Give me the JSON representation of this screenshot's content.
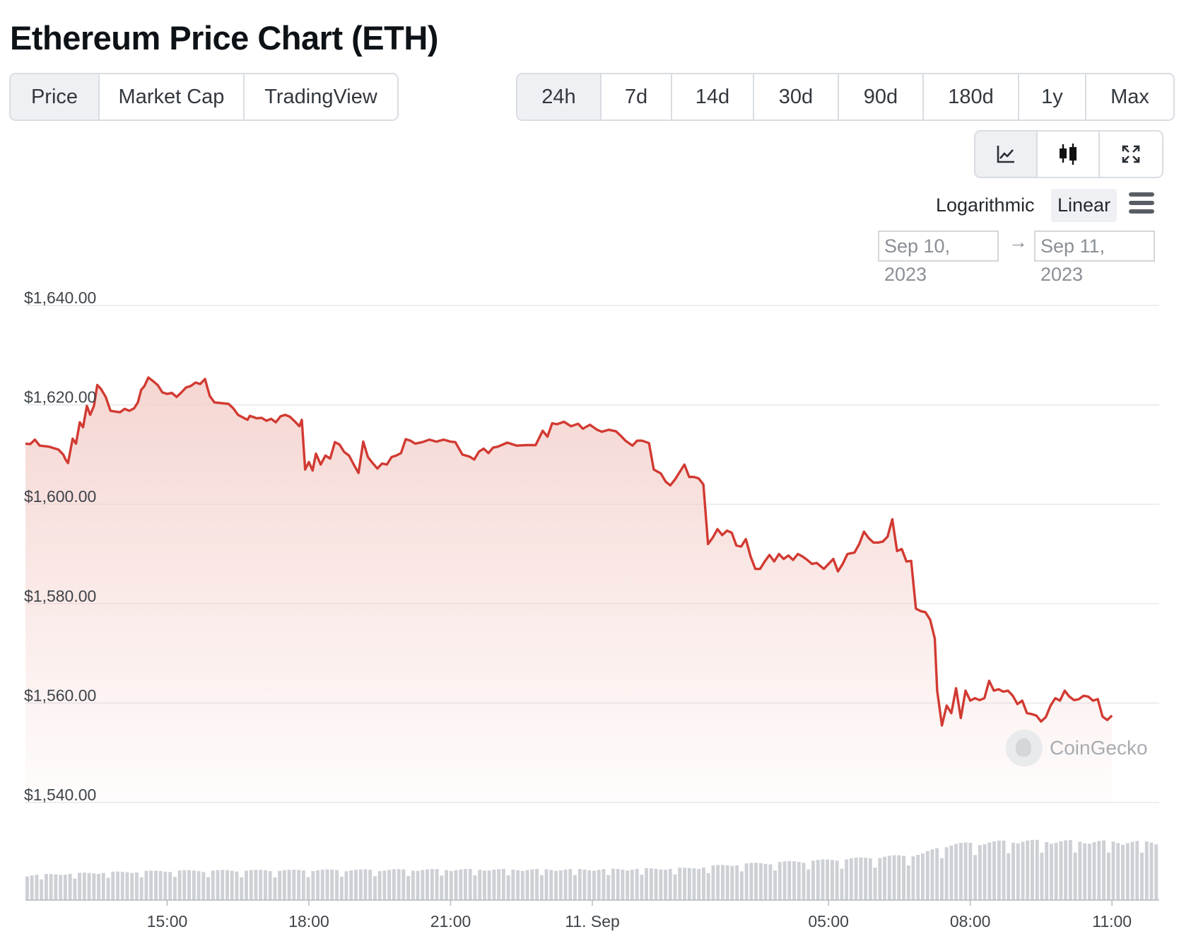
{
  "title": "Ethereum Price Chart (ETH)",
  "tabs": [
    {
      "label": "Price",
      "active": true
    },
    {
      "label": "Market Cap",
      "active": false
    },
    {
      "label": "TradingView",
      "active": false
    }
  ],
  "ranges": [
    {
      "label": "24h",
      "active": true
    },
    {
      "label": "7d",
      "active": false
    },
    {
      "label": "14d",
      "active": false
    },
    {
      "label": "30d",
      "active": false
    },
    {
      "label": "90d",
      "active": false
    },
    {
      "label": "180d",
      "active": false
    },
    {
      "label": "1y",
      "active": false
    },
    {
      "label": "Max",
      "active": false
    }
  ],
  "tools": [
    {
      "icon": "line-chart-icon",
      "active": true
    },
    {
      "icon": "candlestick-icon",
      "active": false
    },
    {
      "icon": "fullscreen-icon",
      "active": false
    }
  ],
  "scale": {
    "log_label": "Logarithmic",
    "linear_label": "Linear",
    "active": "linear",
    "menu_icon": "hamburger-menu-icon"
  },
  "date_range": {
    "from": "Sep 10, 2023",
    "arrow": "→",
    "to": "Sep 11, 2023"
  },
  "watermark": {
    "label": "CoinGecko",
    "icon": "coingecko-logo-icon"
  },
  "colors": {
    "line": "#d13a32",
    "fill": "#f3cfca",
    "volume": "#cdd0d5",
    "grid": "#e6e8eb",
    "active_bg": "#eef0f3"
  },
  "chart_data": {
    "type": "area",
    "title": "",
    "ylabel": "",
    "xlabel": "",
    "ylim": [
      1540,
      1640
    ],
    "ytick_labels": [
      "$1,640.00",
      "$1,620.00",
      "$1,600.00",
      "$1,580.00",
      "$1,560.00",
      "$1,540.00"
    ],
    "ytick_values": [
      1640,
      1620,
      1600,
      1580,
      1560,
      1540
    ],
    "xtick_labels": [
      "15:00",
      "18:00",
      "21:00",
      "11. Sep",
      "05:00",
      "08:00",
      "11:00"
    ],
    "xtick_hours": [
      15,
      18,
      21,
      24,
      29,
      32,
      35
    ],
    "x_range_hours": [
      12,
      36
    ],
    "grid": true,
    "series": [
      {
        "unit": "USD",
        "points": [
          [
            12.0,
            1612.2
          ],
          [
            12.1,
            1612.1
          ],
          [
            12.2,
            1613.0
          ],
          [
            12.3,
            1611.8
          ],
          [
            12.5,
            1611.6
          ],
          [
            12.7,
            1611.0
          ],
          [
            12.8,
            1610.0
          ],
          [
            12.85,
            1609.0
          ],
          [
            12.9,
            1608.3
          ],
          [
            13.0,
            1613.2
          ],
          [
            13.07,
            1612.2
          ],
          [
            13.15,
            1616.5
          ],
          [
            13.22,
            1615.5
          ],
          [
            13.3,
            1619.8
          ],
          [
            13.37,
            1618.0
          ],
          [
            13.45,
            1619.8
          ],
          [
            13.52,
            1624.0
          ],
          [
            13.6,
            1623.2
          ],
          [
            13.7,
            1621.6
          ],
          [
            13.8,
            1618.8
          ],
          [
            14.0,
            1618.5
          ],
          [
            14.1,
            1619.2
          ],
          [
            14.2,
            1618.8
          ],
          [
            14.3,
            1619.3
          ],
          [
            14.38,
            1620.5
          ],
          [
            14.45,
            1623.0
          ],
          [
            14.52,
            1623.8
          ],
          [
            14.6,
            1625.5
          ],
          [
            14.7,
            1624.8
          ],
          [
            14.8,
            1624.0
          ],
          [
            14.9,
            1622.5
          ],
          [
            15.0,
            1622.2
          ],
          [
            15.1,
            1622.4
          ],
          [
            15.2,
            1621.6
          ],
          [
            15.3,
            1622.5
          ],
          [
            15.4,
            1623.5
          ],
          [
            15.5,
            1623.8
          ],
          [
            15.6,
            1624.5
          ],
          [
            15.7,
            1624.2
          ],
          [
            15.8,
            1625.2
          ],
          [
            15.9,
            1621.8
          ],
          [
            16.0,
            1620.5
          ],
          [
            16.2,
            1620.3
          ],
          [
            16.3,
            1620.2
          ],
          [
            16.4,
            1619.3
          ],
          [
            16.5,
            1618.0
          ],
          [
            16.6,
            1617.5
          ],
          [
            16.7,
            1617.0
          ],
          [
            16.75,
            1617.8
          ],
          [
            16.9,
            1617.3
          ],
          [
            17.0,
            1617.4
          ],
          [
            17.1,
            1616.8
          ],
          [
            17.2,
            1617.2
          ],
          [
            17.3,
            1616.5
          ],
          [
            17.4,
            1617.7
          ],
          [
            17.5,
            1618.0
          ],
          [
            17.6,
            1617.6
          ],
          [
            17.7,
            1616.7
          ],
          [
            17.8,
            1615.7
          ],
          [
            17.85,
            1617.0
          ],
          [
            17.92,
            1607.0
          ],
          [
            18.0,
            1608.5
          ],
          [
            18.08,
            1606.8
          ],
          [
            18.15,
            1610.2
          ],
          [
            18.25,
            1608.0
          ],
          [
            18.35,
            1609.8
          ],
          [
            18.45,
            1609.2
          ],
          [
            18.55,
            1612.5
          ],
          [
            18.65,
            1612.0
          ],
          [
            18.75,
            1610.5
          ],
          [
            18.85,
            1609.8
          ],
          [
            18.95,
            1608.0
          ],
          [
            19.05,
            1606.3
          ],
          [
            19.15,
            1612.6
          ],
          [
            19.25,
            1609.5
          ],
          [
            19.35,
            1608.3
          ],
          [
            19.45,
            1607.2
          ],
          [
            19.55,
            1608.2
          ],
          [
            19.65,
            1608.0
          ],
          [
            19.75,
            1609.5
          ],
          [
            19.85,
            1609.8
          ],
          [
            19.95,
            1610.3
          ],
          [
            20.05,
            1613.1
          ],
          [
            20.15,
            1612.8
          ],
          [
            20.25,
            1612.2
          ],
          [
            20.4,
            1612.5
          ],
          [
            20.55,
            1613.0
          ],
          [
            20.7,
            1612.6
          ],
          [
            20.85,
            1613.0
          ],
          [
            21.0,
            1612.6
          ],
          [
            21.1,
            1612.5
          ],
          [
            21.25,
            1610.0
          ],
          [
            21.4,
            1609.6
          ],
          [
            21.5,
            1609.0
          ],
          [
            21.6,
            1610.6
          ],
          [
            21.7,
            1611.2
          ],
          [
            21.8,
            1610.3
          ],
          [
            21.9,
            1611.4
          ],
          [
            22.0,
            1611.6
          ],
          [
            22.2,
            1612.4
          ],
          [
            22.4,
            1611.8
          ],
          [
            22.6,
            1611.9
          ],
          [
            22.8,
            1611.9
          ],
          [
            22.95,
            1614.8
          ],
          [
            23.05,
            1613.6
          ],
          [
            23.15,
            1616.3
          ],
          [
            23.25,
            1616.1
          ],
          [
            23.4,
            1616.6
          ],
          [
            23.55,
            1615.7
          ],
          [
            23.7,
            1616.2
          ],
          [
            23.8,
            1615.2
          ],
          [
            23.95,
            1616.0
          ],
          [
            24.1,
            1615.0
          ],
          [
            24.2,
            1614.6
          ],
          [
            24.35,
            1615.0
          ],
          [
            24.5,
            1614.7
          ],
          [
            24.6,
            1613.8
          ],
          [
            24.7,
            1612.8
          ],
          [
            24.85,
            1611.8
          ],
          [
            24.95,
            1612.8
          ],
          [
            25.05,
            1612.8
          ],
          [
            25.2,
            1612.3
          ],
          [
            25.3,
            1607.0
          ],
          [
            25.45,
            1606.2
          ],
          [
            25.55,
            1604.6
          ],
          [
            25.65,
            1603.8
          ],
          [
            25.75,
            1605.0
          ],
          [
            25.85,
            1606.5
          ],
          [
            25.95,
            1608.0
          ],
          [
            26.05,
            1605.5
          ],
          [
            26.15,
            1605.5
          ],
          [
            26.25,
            1605.2
          ],
          [
            26.35,
            1604.0
          ],
          [
            26.45,
            1592.0
          ],
          [
            26.55,
            1593.3
          ],
          [
            26.65,
            1595.0
          ],
          [
            26.75,
            1593.8
          ],
          [
            26.85,
            1594.7
          ],
          [
            26.95,
            1594.3
          ],
          [
            27.05,
            1591.7
          ],
          [
            27.15,
            1591.5
          ],
          [
            27.25,
            1593.0
          ],
          [
            27.35,
            1589.5
          ],
          [
            27.45,
            1587.0
          ],
          [
            27.55,
            1587.0
          ],
          [
            27.65,
            1588.5
          ],
          [
            27.75,
            1589.8
          ],
          [
            27.85,
            1588.5
          ],
          [
            27.95,
            1590.0
          ],
          [
            28.05,
            1589.0
          ],
          [
            28.15,
            1589.7
          ],
          [
            28.25,
            1588.8
          ],
          [
            28.35,
            1590.0
          ],
          [
            28.45,
            1589.5
          ],
          [
            28.55,
            1588.8
          ],
          [
            28.65,
            1588.0
          ],
          [
            28.75,
            1588.2
          ],
          [
            28.9,
            1587.0
          ],
          [
            29.0,
            1588.0
          ],
          [
            29.1,
            1589.0
          ],
          [
            29.2,
            1586.5
          ],
          [
            29.3,
            1588.0
          ],
          [
            29.4,
            1590.0
          ],
          [
            29.55,
            1590.3
          ],
          [
            29.65,
            1592.0
          ],
          [
            29.75,
            1594.5
          ],
          [
            29.85,
            1593.2
          ],
          [
            29.95,
            1592.3
          ],
          [
            30.05,
            1592.3
          ],
          [
            30.15,
            1592.5
          ],
          [
            30.25,
            1593.5
          ],
          [
            30.35,
            1597.0
          ],
          [
            30.45,
            1590.6
          ],
          [
            30.55,
            1591.0
          ],
          [
            30.65,
            1588.5
          ],
          [
            30.75,
            1588.6
          ],
          [
            30.85,
            1579.0
          ],
          [
            30.95,
            1578.5
          ],
          [
            31.05,
            1578.3
          ],
          [
            31.15,
            1576.8
          ],
          [
            31.25,
            1573.0
          ],
          [
            31.3,
            1562.5
          ],
          [
            31.4,
            1555.5
          ],
          [
            31.5,
            1559.5
          ],
          [
            31.6,
            1558.0
          ],
          [
            31.7,
            1563.0
          ],
          [
            31.8,
            1557.0
          ],
          [
            31.9,
            1562.5
          ],
          [
            32.0,
            1560.5
          ],
          [
            32.1,
            1561.0
          ],
          [
            32.2,
            1560.6
          ],
          [
            32.3,
            1561.0
          ],
          [
            32.4,
            1564.5
          ],
          [
            32.5,
            1562.5
          ],
          [
            32.6,
            1562.8
          ],
          [
            32.7,
            1562.3
          ],
          [
            32.8,
            1562.5
          ],
          [
            32.9,
            1561.5
          ],
          [
            33.0,
            1559.8
          ],
          [
            33.1,
            1560.5
          ],
          [
            33.2,
            1558.0
          ],
          [
            33.3,
            1557.8
          ],
          [
            33.4,
            1557.5
          ],
          [
            33.5,
            1556.3
          ],
          [
            33.6,
            1557.2
          ],
          [
            33.7,
            1559.5
          ],
          [
            33.8,
            1561.0
          ],
          [
            33.9,
            1560.5
          ],
          [
            34.0,
            1562.5
          ],
          [
            34.1,
            1561.3
          ],
          [
            34.2,
            1560.6
          ],
          [
            34.3,
            1560.8
          ],
          [
            34.4,
            1561.5
          ],
          [
            34.5,
            1561.3
          ],
          [
            34.6,
            1560.5
          ],
          [
            34.7,
            1560.8
          ],
          [
            34.8,
            1557.3
          ],
          [
            34.9,
            1556.6
          ],
          [
            35.0,
            1557.5
          ]
        ]
      }
    ],
    "volume_bars": {
      "bars": 238,
      "profile_hours": [
        12,
        13.5,
        15,
        18,
        21,
        24,
        26,
        27,
        29,
        30,
        31,
        31.5,
        33,
        36
      ],
      "profile_relative": [
        0.39,
        0.43,
        0.46,
        0.47,
        0.48,
        0.48,
        0.5,
        0.56,
        0.63,
        0.67,
        0.72,
        0.87,
        0.93,
        0.91
      ]
    }
  }
}
